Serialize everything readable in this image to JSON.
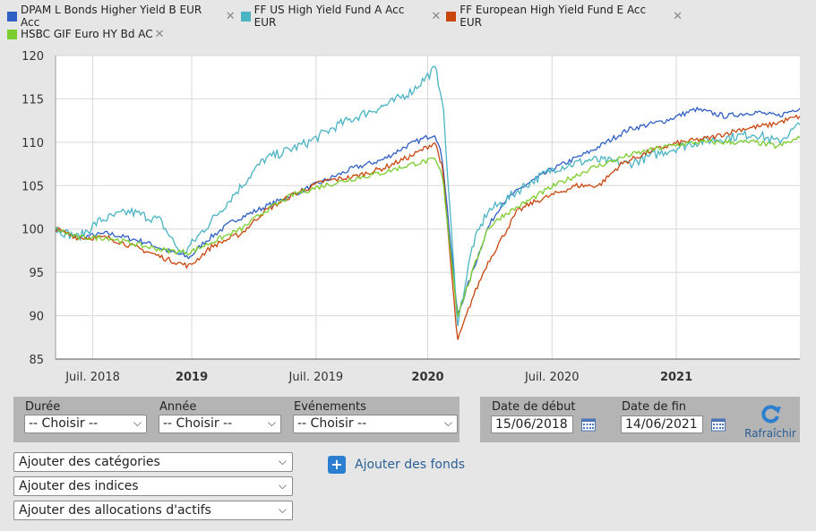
{
  "legend": [
    {
      "name": "DPAM L Bonds Higher Yield B EUR Acc",
      "color": "#2f5fc4"
    },
    {
      "name": "FF US High Yield Fund A Acc EUR",
      "color": "#4ab3c4"
    },
    {
      "name": "FF European High Yield Fund E Acc EUR",
      "color": "#c9460f"
    },
    {
      "name": "HSBC GIF Euro HY Bd AC",
      "color": "#7ccd2e"
    }
  ],
  "remove_glyph": "✕",
  "chart_data": {
    "type": "line",
    "ylim": [
      85,
      120
    ],
    "yticks": [
      "120",
      "115",
      "110",
      "105",
      "100",
      "95",
      "90",
      "85"
    ],
    "xticks": [
      {
        "label": "Juil. 2018",
        "t": 0.05,
        "bold": false
      },
      {
        "label": "2019",
        "t": 0.183,
        "bold": true
      },
      {
        "label": "Juil. 2019",
        "t": 0.35,
        "bold": false
      },
      {
        "label": "2020",
        "t": 0.5,
        "bold": true
      },
      {
        "label": "Juil. 2020",
        "t": 0.667,
        "bold": false
      },
      {
        "label": "2021",
        "t": 0.834,
        "bold": true
      }
    ],
    "series": [
      {
        "name": "DPAM L Bonds Higher Yield B EUR Acc",
        "color": "#2f5fc4",
        "values": [
          [
            0,
            100
          ],
          [
            0.03,
            99
          ],
          [
            0.07,
            99.5
          ],
          [
            0.12,
            98.5
          ],
          [
            0.15,
            97.5
          ],
          [
            0.18,
            96.7
          ],
          [
            0.2,
            98.5
          ],
          [
            0.24,
            101
          ],
          [
            0.28,
            102.5
          ],
          [
            0.32,
            104
          ],
          [
            0.36,
            105.5
          ],
          [
            0.4,
            107
          ],
          [
            0.44,
            108
          ],
          [
            0.47,
            109.5
          ],
          [
            0.51,
            111
          ],
          [
            0.52,
            108
          ],
          [
            0.54,
            90
          ],
          [
            0.56,
            95
          ],
          [
            0.58,
            100
          ],
          [
            0.6,
            103
          ],
          [
            0.63,
            105
          ],
          [
            0.67,
            107
          ],
          [
            0.72,
            109
          ],
          [
            0.77,
            111.5
          ],
          [
            0.82,
            112.5
          ],
          [
            0.86,
            113.8
          ],
          [
            0.9,
            113
          ],
          [
            0.94,
            113.5
          ],
          [
            0.97,
            113
          ],
          [
            1,
            114
          ]
        ]
      },
      {
        "name": "FF US High Yield Fund A Acc EUR",
        "color": "#4ab3c4",
        "values": [
          [
            0,
            100
          ],
          [
            0.03,
            99
          ],
          [
            0.06,
            101
          ],
          [
            0.1,
            102
          ],
          [
            0.14,
            101
          ],
          [
            0.17,
            97
          ],
          [
            0.19,
            99
          ],
          [
            0.21,
            101
          ],
          [
            0.25,
            105
          ],
          [
            0.28,
            108
          ],
          [
            0.31,
            109
          ],
          [
            0.34,
            110
          ],
          [
            0.38,
            112
          ],
          [
            0.42,
            113.5
          ],
          [
            0.45,
            114.5
          ],
          [
            0.48,
            116
          ],
          [
            0.51,
            118.5
          ],
          [
            0.52,
            115
          ],
          [
            0.54,
            89
          ],
          [
            0.56,
            98
          ],
          [
            0.58,
            102
          ],
          [
            0.6,
            103
          ],
          [
            0.63,
            105
          ],
          [
            0.67,
            107
          ],
          [
            0.72,
            108
          ],
          [
            0.77,
            107.5
          ],
          [
            0.82,
            109
          ],
          [
            0.86,
            110
          ],
          [
            0.9,
            110.5
          ],
          [
            0.94,
            111
          ],
          [
            0.97,
            110
          ],
          [
            1,
            112
          ]
        ]
      },
      {
        "name": "FF European High Yield Fund E Acc EUR",
        "color": "#c9460f",
        "values": [
          [
            0,
            100
          ],
          [
            0.03,
            99
          ],
          [
            0.07,
            99
          ],
          [
            0.12,
            97.5
          ],
          [
            0.15,
            96.5
          ],
          [
            0.18,
            95.7
          ],
          [
            0.21,
            98
          ],
          [
            0.25,
            99.5
          ],
          [
            0.28,
            102
          ],
          [
            0.32,
            104
          ],
          [
            0.36,
            105.5
          ],
          [
            0.4,
            106
          ],
          [
            0.44,
            107
          ],
          [
            0.48,
            108.5
          ],
          [
            0.51,
            110
          ],
          [
            0.52,
            107
          ],
          [
            0.54,
            87
          ],
          [
            0.56,
            92
          ],
          [
            0.58,
            96
          ],
          [
            0.6,
            99
          ],
          [
            0.62,
            102
          ],
          [
            0.64,
            103
          ],
          [
            0.67,
            104
          ],
          [
            0.7,
            105
          ],
          [
            0.73,
            105
          ],
          [
            0.76,
            107.5
          ],
          [
            0.8,
            109
          ],
          [
            0.84,
            110
          ],
          [
            0.88,
            110.5
          ],
          [
            0.92,
            111.5
          ],
          [
            0.96,
            112
          ],
          [
            1,
            113
          ]
        ]
      },
      {
        "name": "HSBC GIF Euro HY Bd AC",
        "color": "#7ccd2e",
        "values": [
          [
            0,
            100
          ],
          [
            0.03,
            99
          ],
          [
            0.07,
            99
          ],
          [
            0.12,
            98
          ],
          [
            0.15,
            97.5
          ],
          [
            0.18,
            97.3
          ],
          [
            0.21,
            98.5
          ],
          [
            0.25,
            100
          ],
          [
            0.28,
            102
          ],
          [
            0.32,
            104
          ],
          [
            0.36,
            105
          ],
          [
            0.4,
            105.8
          ],
          [
            0.44,
            106.5
          ],
          [
            0.48,
            107.5
          ],
          [
            0.51,
            108
          ],
          [
            0.52,
            106
          ],
          [
            0.54,
            90
          ],
          [
            0.56,
            95
          ],
          [
            0.58,
            100
          ],
          [
            0.6,
            101.5
          ],
          [
            0.63,
            103
          ],
          [
            0.67,
            105
          ],
          [
            0.72,
            107
          ],
          [
            0.77,
            108.5
          ],
          [
            0.82,
            109.5
          ],
          [
            0.86,
            110
          ],
          [
            0.9,
            110
          ],
          [
            0.94,
            110
          ],
          [
            0.97,
            109.5
          ],
          [
            1,
            110.5
          ]
        ]
      }
    ]
  },
  "filters": {
    "duration_label": "Durée",
    "duration_value": "-- Choisir --",
    "year_label": "Année",
    "year_value": "-- Choisir --",
    "events_label": "Evénements",
    "events_value": "-- Choisir --",
    "start_label": "Date de début",
    "start_value": "15/06/2018",
    "end_label": "Date de fin",
    "end_value": "14/06/2021",
    "refresh_label": "Rafraîchir"
  },
  "adders": {
    "categories": "Ajouter des catégories",
    "indices": "Ajouter des indices",
    "allocations": "Ajouter des allocations d'actifs",
    "funds": "Ajouter des fonds"
  }
}
